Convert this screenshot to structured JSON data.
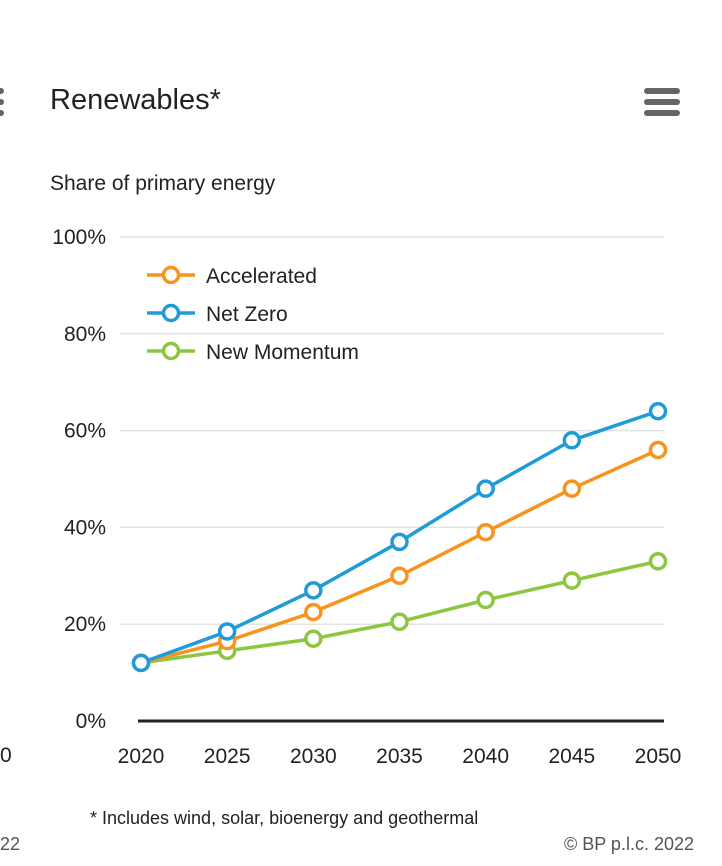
{
  "header": {
    "title": "Renewables*",
    "subtitle": "Share of primary energy",
    "menu_icon": "hamburger-icon"
  },
  "footer": {
    "footnote": "* Includes wind, solar, bioenergy and geothermal",
    "copyright": "© BP p.l.c. 2022"
  },
  "edge": {
    "left_axis_fragment": "0",
    "left_footer_fragment": "22"
  },
  "chart_data": {
    "type": "line",
    "title": "Renewables*",
    "subtitle": "Share of primary energy",
    "x": [
      2020,
      2025,
      2030,
      2035,
      2040,
      2045,
      2050
    ],
    "x_tick_labels": [
      "2020",
      "2025",
      "2030",
      "2035",
      "2040",
      "2045",
      "2050"
    ],
    "ylim": [
      0,
      100
    ],
    "y_ticks": [
      0,
      20,
      40,
      60,
      80,
      100
    ],
    "y_tick_labels": [
      "0%",
      "20%",
      "40%",
      "60%",
      "80%",
      "100%"
    ],
    "grid": true,
    "legend_position": "top-left",
    "series": [
      {
        "name": "Accelerated",
        "color": "#f7941d",
        "values": [
          12,
          16.5,
          22.5,
          30,
          39,
          48,
          56
        ]
      },
      {
        "name": "Net Zero",
        "color": "#1f9bd7",
        "values": [
          12,
          18.5,
          27,
          37,
          48,
          58,
          64
        ]
      },
      {
        "name": "New Momentum",
        "color": "#8dc63f",
        "values": [
          12,
          14.5,
          17,
          20.5,
          25,
          29,
          33
        ]
      }
    ]
  }
}
